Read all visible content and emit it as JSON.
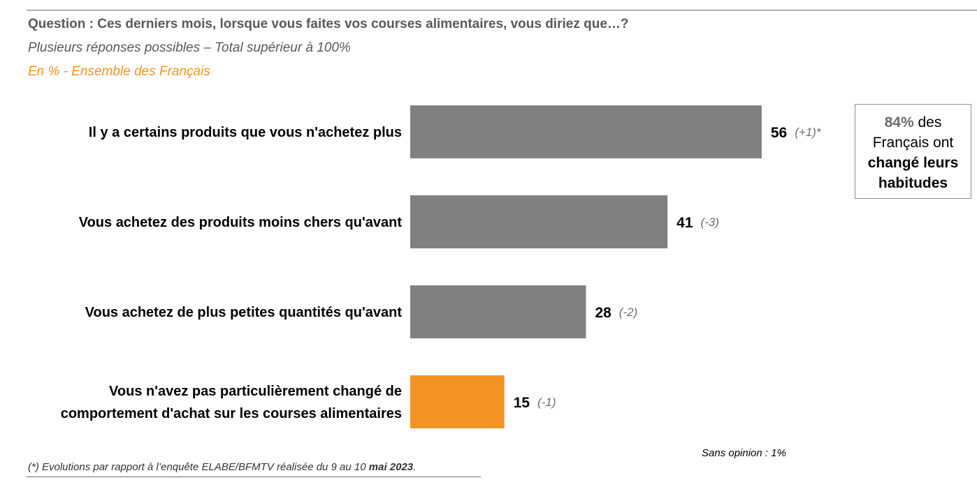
{
  "header": {
    "question": "Question : Ces derniers mois, lorsque vous faites vos courses alimentaires, vous diriez que…?",
    "subtitle": "Plusieurs réponses possibles – Total supérieur à 100%",
    "scope": "En % - Ensemble des Français"
  },
  "chart_data": {
    "type": "bar",
    "orientation": "horizontal",
    "categories": [
      [
        "Il y a certains produits que vous n'achetez plus"
      ],
      [
        "Vous achetez des produits moins chers qu'avant"
      ],
      [
        "Vous achetez de plus petites quantités qu'avant"
      ],
      [
        "Vous n'avez pas particulièrement changé de",
        "comportement d'achat sur les courses alimentaires"
      ]
    ],
    "values": [
      56,
      41,
      28,
      15
    ],
    "value_labels": [
      "56",
      "41",
      "28",
      "15"
    ],
    "evolutions": [
      "(+1)*",
      "(-3)",
      "(-2)",
      "(-1)"
    ],
    "colors": [
      "#808080",
      "#808080",
      "#808080",
      "#f39323"
    ],
    "xlim": [
      0,
      100
    ],
    "grid": false
  },
  "callout": {
    "pct": "84%",
    "line1_rest": " des",
    "line2": "Français ont",
    "line3": "changé leurs",
    "line4": "habitudes"
  },
  "notes": {
    "sans_opinion": "Sans opinion : 1%",
    "footnote_main": "(*) Evolutions par rapport à l’enquête ELABE/BFMTV réalisée du 9 au 10 ",
    "footnote_date": "mai 2023",
    "footnote_end": "."
  }
}
